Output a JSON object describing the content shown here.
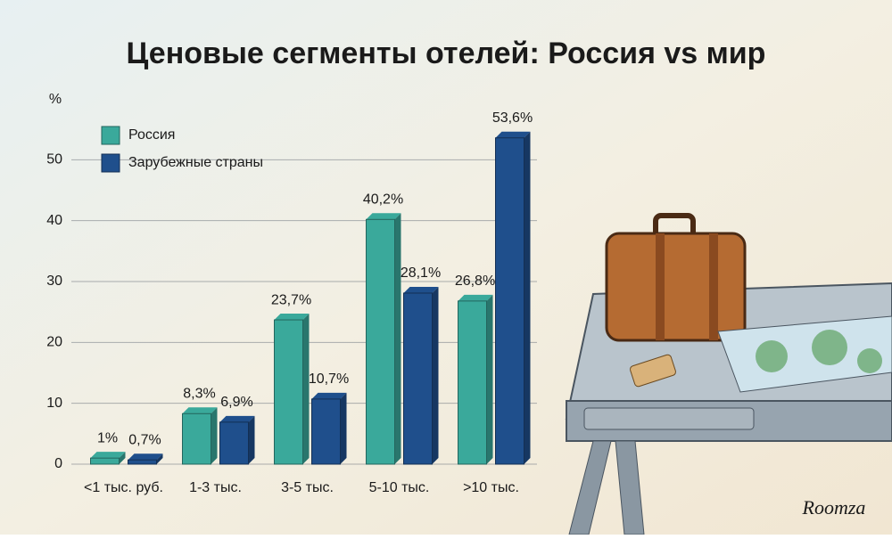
{
  "chart_data": {
    "type": "bar",
    "title": "Ценовые сегменты отелей: Россия vs мир",
    "y_label": "%",
    "categories": [
      "<1 тыс. руб.",
      "1-3 тыс.",
      "3-5 тыс.",
      "5-10 тыс.",
      ">10 тыс."
    ],
    "series": [
      {
        "name": "Россия",
        "color": "#3aa99b",
        "values": [
          1,
          8.3,
          23.7,
          40.2,
          26.8
        ],
        "value_labels": [
          "1%",
          "8,3%",
          "23,7%",
          "40,2%",
          "26,8%"
        ]
      },
      {
        "name": "Зарубежные страны",
        "color": "#1f4f8c",
        "values": [
          0.7,
          6.9,
          10.7,
          28.1,
          53.6
        ],
        "value_labels": [
          "0,7%",
          "6,9%",
          "10,7%",
          "28,1%",
          "53,6%"
        ]
      }
    ],
    "ylim": [
      0,
      60
    ],
    "yticks": [
      0,
      10,
      20,
      30,
      40,
      50
    ],
    "grid": true,
    "legend": "upper left"
  },
  "brand": "Roomza"
}
